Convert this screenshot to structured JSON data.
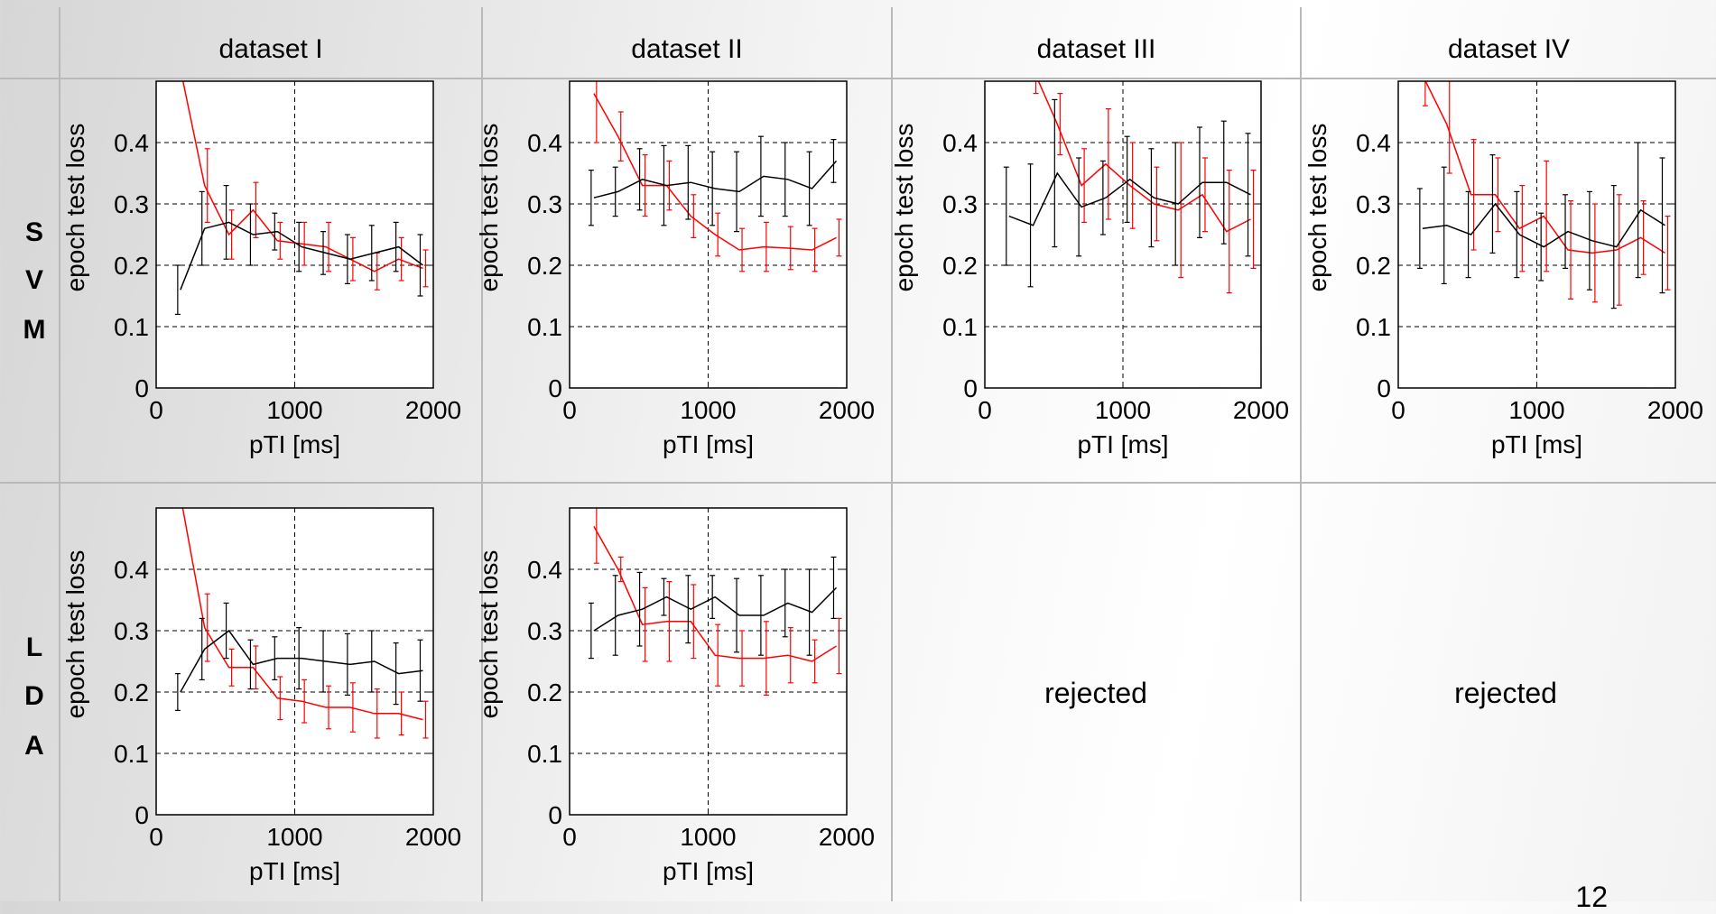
{
  "column_headers": [
    "dataset I",
    "dataset II",
    "dataset III",
    "dataset IV"
  ],
  "row_labels": [
    [
      "S",
      "V",
      "M"
    ],
    [
      "L",
      "D",
      "A"
    ]
  ],
  "rejected_label": "rejected",
  "page_number": "12",
  "colors": {
    "red_series": "#ff0000",
    "black_series": "#000000",
    "grid": "#b9b9b9"
  },
  "chart_data": [
    {
      "type": "line",
      "id": "svm-dataset-1",
      "xlabel": "pTI [ms]",
      "ylabel": "epoch test loss",
      "xlim": [
        0,
        2000
      ],
      "ylim": [
        0,
        0.5
      ],
      "xticks": [
        0,
        1000,
        2000
      ],
      "yticks": [
        0,
        0.1,
        0.2,
        0.3,
        0.4
      ],
      "grid": "dashed",
      "x": [
        175,
        350,
        525,
        700,
        875,
        1050,
        1225,
        1400,
        1575,
        1750,
        1925
      ],
      "series": [
        {
          "color": "#ff0000",
          "values": [
            0.52,
            0.33,
            0.25,
            0.29,
            0.24,
            0.235,
            0.23,
            0.21,
            0.19,
            0.21,
            0.195
          ],
          "err": [
            0,
            0.06,
            0.04,
            0.045,
            0.03,
            0.035,
            0.04,
            0.035,
            0.03,
            0.035,
            0.03
          ]
        },
        {
          "color": "#000000",
          "values": [
            0.16,
            0.26,
            0.27,
            0.25,
            0.255,
            0.23,
            0.22,
            0.21,
            0.22,
            0.23,
            0.2
          ],
          "err": [
            0.04,
            0.06,
            0.06,
            0.05,
            0.03,
            0.04,
            0.035,
            0.04,
            0.045,
            0.04,
            0.05
          ]
        }
      ]
    },
    {
      "type": "line",
      "id": "svm-dataset-2",
      "xlabel": "pTI [ms]",
      "ylabel": "epoch test loss",
      "xlim": [
        0,
        2000
      ],
      "ylim": [
        0,
        0.5
      ],
      "xticks": [
        0,
        1000,
        2000
      ],
      "yticks": [
        0,
        0.1,
        0.2,
        0.3,
        0.4
      ],
      "grid": "dashed",
      "x": [
        175,
        350,
        525,
        700,
        875,
        1050,
        1225,
        1400,
        1575,
        1750,
        1925
      ],
      "series": [
        {
          "color": "#ff0000",
          "values": [
            0.48,
            0.41,
            0.33,
            0.33,
            0.28,
            0.25,
            0.225,
            0.23,
            0.228,
            0.225,
            0.245
          ],
          "err": [
            0.08,
            0.04,
            0.05,
            0.04,
            0.035,
            0.035,
            0.035,
            0.04,
            0.035,
            0.035,
            0.03
          ]
        },
        {
          "color": "#000000",
          "values": [
            0.31,
            0.32,
            0.34,
            0.33,
            0.335,
            0.325,
            0.32,
            0.345,
            0.34,
            0.325,
            0.37
          ],
          "err": [
            0.045,
            0.04,
            0.05,
            0.065,
            0.06,
            0.06,
            0.065,
            0.065,
            0.06,
            0.06,
            0.035
          ]
        }
      ]
    },
    {
      "type": "line",
      "id": "svm-dataset-3",
      "xlabel": "pTI [ms]",
      "ylabel": "epoch test loss",
      "xlim": [
        0,
        2000
      ],
      "ylim": [
        0,
        0.5
      ],
      "xticks": [
        0,
        1000,
        2000
      ],
      "yticks": [
        0,
        0.1,
        0.2,
        0.3,
        0.4
      ],
      "grid": "dashed",
      "x": [
        175,
        350,
        525,
        700,
        875,
        1050,
        1225,
        1400,
        1575,
        1750,
        1925
      ],
      "series": [
        {
          "color": "#ff0000",
          "values": [
            0.55,
            0.52,
            0.43,
            0.33,
            0.365,
            0.33,
            0.3,
            0.29,
            0.315,
            0.255,
            0.275
          ],
          "err": [
            0.04,
            0.04,
            0.05,
            0.06,
            0.09,
            0.07,
            0.06,
            0.11,
            0.06,
            0.1,
            0.08
          ]
        },
        {
          "color": "#000000",
          "values": [
            0.28,
            0.265,
            0.35,
            0.295,
            0.31,
            0.34,
            0.31,
            0.3,
            0.335,
            0.335,
            0.315
          ],
          "err": [
            0.08,
            0.1,
            0.12,
            0.08,
            0.06,
            0.07,
            0.08,
            0.1,
            0.09,
            0.1,
            0.1
          ]
        }
      ]
    },
    {
      "type": "line",
      "id": "svm-dataset-4",
      "xlabel": "pTI [ms]",
      "ylabel": "epoch test loss",
      "xlim": [
        0,
        2000
      ],
      "ylim": [
        0,
        0.5
      ],
      "xticks": [
        0,
        1000,
        2000
      ],
      "yticks": [
        0,
        0.1,
        0.2,
        0.3,
        0.4
      ],
      "grid": "dashed",
      "x": [
        175,
        350,
        525,
        700,
        875,
        1050,
        1225,
        1400,
        1575,
        1750,
        1925
      ],
      "series": [
        {
          "color": "#ff0000",
          "values": [
            0.51,
            0.43,
            0.315,
            0.315,
            0.26,
            0.28,
            0.225,
            0.22,
            0.225,
            0.245,
            0.22
          ],
          "err": [
            0.05,
            0.08,
            0.09,
            0.06,
            0.07,
            0.09,
            0.08,
            0.08,
            0.09,
            0.06,
            0.06
          ]
        },
        {
          "color": "#000000",
          "values": [
            0.26,
            0.265,
            0.25,
            0.3,
            0.25,
            0.23,
            0.255,
            0.24,
            0.23,
            0.29,
            0.265
          ],
          "err": [
            0.065,
            0.095,
            0.07,
            0.08,
            0.07,
            0.055,
            0.06,
            0.08,
            0.1,
            0.11,
            0.11
          ]
        }
      ]
    },
    {
      "type": "line",
      "id": "lda-dataset-1",
      "xlabel": "pTI [ms]",
      "ylabel": "epoch test loss",
      "xlim": [
        0,
        2000
      ],
      "ylim": [
        0,
        0.5
      ],
      "xticks": [
        0,
        1000,
        2000
      ],
      "yticks": [
        0,
        0.1,
        0.2,
        0.3,
        0.4
      ],
      "grid": "dashed",
      "x": [
        175,
        350,
        525,
        700,
        875,
        1050,
        1225,
        1400,
        1575,
        1750,
        1925
      ],
      "series": [
        {
          "color": "#ff0000",
          "values": [
            0.52,
            0.305,
            0.24,
            0.24,
            0.19,
            0.185,
            0.175,
            0.175,
            0.165,
            0.165,
            0.155
          ],
          "err": [
            0,
            0.055,
            0.03,
            0.035,
            0.035,
            0.035,
            0.035,
            0.04,
            0.04,
            0.035,
            0.03
          ]
        },
        {
          "color": "#000000",
          "values": [
            0.2,
            0.27,
            0.3,
            0.245,
            0.255,
            0.255,
            0.25,
            0.245,
            0.25,
            0.23,
            0.235
          ],
          "err": [
            0.03,
            0.05,
            0.045,
            0.04,
            0.035,
            0.05,
            0.05,
            0.05,
            0.05,
            0.05,
            0.05
          ]
        }
      ]
    },
    {
      "type": "line",
      "id": "lda-dataset-2",
      "xlabel": "pTI [ms]",
      "ylabel": "epoch test loss",
      "xlim": [
        0,
        2000
      ],
      "ylim": [
        0,
        0.5
      ],
      "xticks": [
        0,
        1000,
        2000
      ],
      "yticks": [
        0,
        0.1,
        0.2,
        0.3,
        0.4
      ],
      "grid": "dashed",
      "x": [
        175,
        350,
        525,
        700,
        875,
        1050,
        1225,
        1400,
        1575,
        1750,
        1925
      ],
      "series": [
        {
          "color": "#ff0000",
          "values": [
            0.47,
            0.4,
            0.31,
            0.315,
            0.315,
            0.26,
            0.255,
            0.255,
            0.26,
            0.25,
            0.275
          ],
          "err": [
            0.06,
            0.02,
            0.06,
            0.065,
            0.06,
            0.05,
            0.045,
            0.06,
            0.045,
            0.035,
            0.045
          ]
        },
        {
          "color": "#000000",
          "values": [
            0.3,
            0.325,
            0.335,
            0.355,
            0.335,
            0.355,
            0.325,
            0.325,
            0.345,
            0.33,
            0.37
          ],
          "err": [
            0.045,
            0.065,
            0.06,
            0.03,
            0.055,
            0.035,
            0.06,
            0.065,
            0.055,
            0.07,
            0.05
          ]
        }
      ]
    }
  ]
}
